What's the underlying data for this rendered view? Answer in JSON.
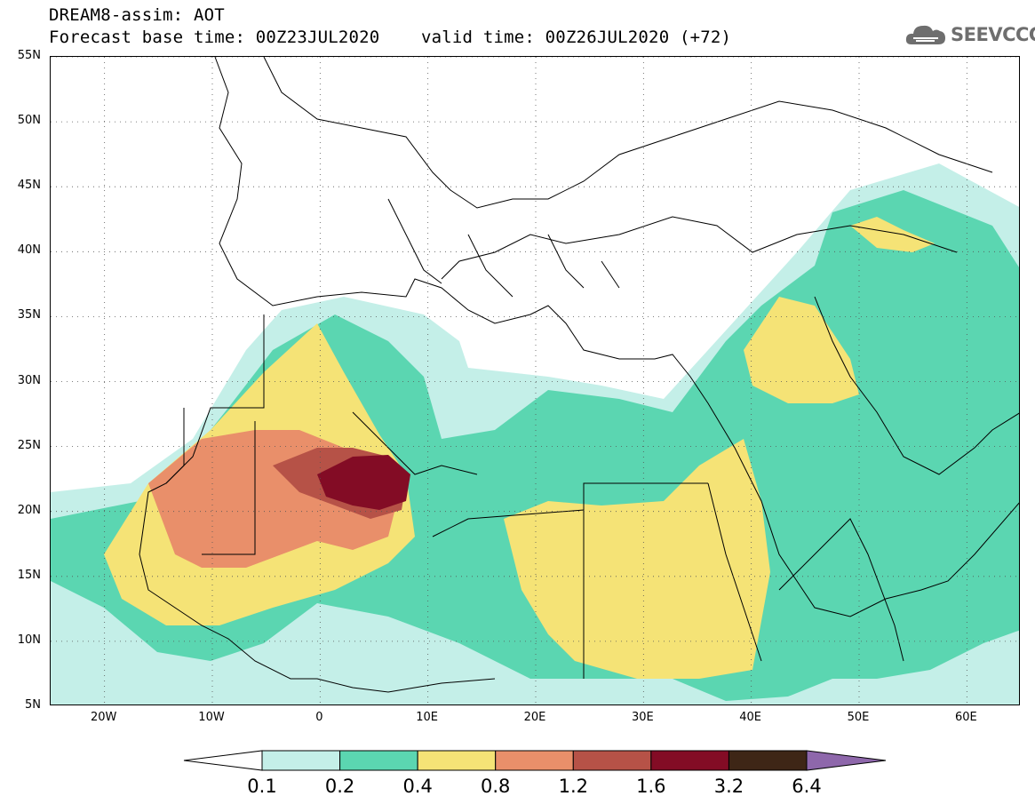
{
  "header": {
    "title": "DREAM8-assim: AOT",
    "subtitle": "Forecast base time: 00Z23JUL2020    valid time: 00Z26JUL2020 (+72)"
  },
  "logo": {
    "text": "SEEVCCC",
    "icon": "cloud-icon",
    "color": "#6e6e6e"
  },
  "map": {
    "lon_range": [
      -25,
      65
    ],
    "lat_range": [
      5,
      55
    ],
    "lat_ticks": [
      {
        "value": 55,
        "label": "55N"
      },
      {
        "value": 50,
        "label": "50N"
      },
      {
        "value": 45,
        "label": "45N"
      },
      {
        "value": 40,
        "label": "40N"
      },
      {
        "value": 35,
        "label": "35N"
      },
      {
        "value": 30,
        "label": "30N"
      },
      {
        "value": 25,
        "label": "25N"
      },
      {
        "value": 20,
        "label": "20N"
      },
      {
        "value": 15,
        "label": "15N"
      },
      {
        "value": 10,
        "label": "10N"
      },
      {
        "value": 5,
        "label": "5N"
      }
    ],
    "lon_ticks": [
      {
        "value": -20,
        "label": "20W"
      },
      {
        "value": -10,
        "label": "10W"
      },
      {
        "value": 0,
        "label": "0"
      },
      {
        "value": 10,
        "label": "10E"
      },
      {
        "value": 20,
        "label": "20E"
      },
      {
        "value": 30,
        "label": "30E"
      },
      {
        "value": 40,
        "label": "40E"
      },
      {
        "value": 50,
        "label": "50E"
      },
      {
        "value": 60,
        "label": "60E"
      }
    ],
    "grid": "dotted"
  },
  "colorbar": {
    "labels": [
      "0.1",
      "0.2",
      "0.4",
      "0.8",
      "1.2",
      "1.6",
      "3.2",
      "6.4"
    ],
    "colors": [
      "#c4efe8",
      "#5bd6b1",
      "#f5e376",
      "#e98f6a",
      "#b65247",
      "#830c25",
      "#3e2616",
      "#8e67ab"
    ],
    "below_color": "#ffffff"
  }
}
